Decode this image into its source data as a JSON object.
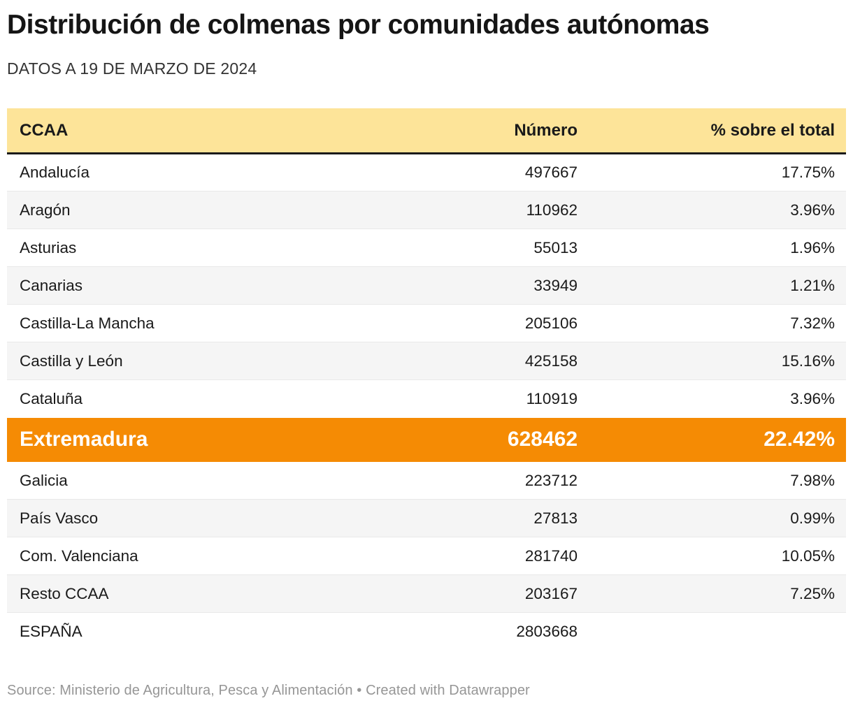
{
  "header": {
    "title": "Distribución de colmenas por comunidades autónomas",
    "subtitle": "DATOS A 19 DE MARZO DE 2024"
  },
  "table": {
    "columns": [
      "CCAA",
      "Número",
      "% sobre el total"
    ],
    "rows": [
      {
        "ccaa": "Andalucía",
        "numero": "497667",
        "pct": "17.75%",
        "highlight": false
      },
      {
        "ccaa": "Aragón",
        "numero": "110962",
        "pct": "3.96%",
        "highlight": false
      },
      {
        "ccaa": "Asturias",
        "numero": "55013",
        "pct": "1.96%",
        "highlight": false
      },
      {
        "ccaa": "Canarias",
        "numero": "33949",
        "pct": "1.21%",
        "highlight": false
      },
      {
        "ccaa": "Castilla-La Mancha",
        "numero": "205106",
        "pct": "7.32%",
        "highlight": false
      },
      {
        "ccaa": "Castilla y León",
        "numero": "425158",
        "pct": "15.16%",
        "highlight": false
      },
      {
        "ccaa": "Cataluña",
        "numero": "110919",
        "pct": "3.96%",
        "highlight": false
      },
      {
        "ccaa": "Extremadura",
        "numero": "628462",
        "pct": "22.42%",
        "highlight": true
      },
      {
        "ccaa": "Galicia",
        "numero": "223712",
        "pct": "7.98%",
        "highlight": false
      },
      {
        "ccaa": "País Vasco",
        "numero": "27813",
        "pct": "0.99%",
        "highlight": false
      },
      {
        "ccaa": "Com. Valenciana",
        "numero": "281740",
        "pct": "10.05%",
        "highlight": false
      },
      {
        "ccaa": "Resto CCAA",
        "numero": "203167",
        "pct": "7.25%",
        "highlight": false
      },
      {
        "ccaa": "ESPAÑA",
        "numero": "2803668",
        "pct": "",
        "highlight": false
      }
    ]
  },
  "chart_data": {
    "type": "table",
    "title": "Distribución de colmenas por comunidades autónomas",
    "subtitle": "DATOS A 19 DE MARZO DE 2024",
    "columns": [
      "CCAA",
      "Número",
      "% sobre el total"
    ],
    "categories": [
      "Andalucía",
      "Aragón",
      "Asturias",
      "Canarias",
      "Castilla-La Mancha",
      "Castilla y León",
      "Cataluña",
      "Extremadura",
      "Galicia",
      "País Vasco",
      "Com. Valenciana",
      "Resto CCAA",
      "ESPAÑA"
    ],
    "series": [
      {
        "name": "Número",
        "values": [
          497667,
          110962,
          55013,
          33949,
          205106,
          425158,
          110919,
          628462,
          223712,
          27813,
          281740,
          203167,
          2803668
        ]
      },
      {
        "name": "% sobre el total",
        "values": [
          17.75,
          3.96,
          1.96,
          1.21,
          7.32,
          15.16,
          3.96,
          22.42,
          7.98,
          0.99,
          10.05,
          7.25,
          null
        ]
      }
    ],
    "highlighted_row": "Extremadura",
    "source": "Ministerio de Agricultura, Pesca y Alimentación"
  },
  "colors": {
    "header_bg": "#fde499",
    "header_border": "#1a1a1a",
    "highlight_bg": "#f58b04",
    "stripe_bg": "#f5f5f5",
    "body_text": "#1a1a1a",
    "footer_text": "#969696"
  },
  "footer": {
    "source": "Source: Ministerio de Agricultura, Pesca y Alimentación",
    "separator": "•",
    "credit": "Created with Datawrapper"
  }
}
